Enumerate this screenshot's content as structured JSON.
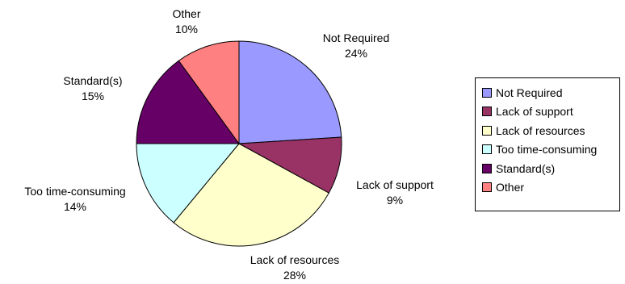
{
  "chart_data": {
    "type": "pie",
    "title": "",
    "start_angle_deg": 0,
    "direction": "clockwise",
    "legend_placement": "right",
    "slices": [
      {
        "label": "Not Required",
        "value": 24,
        "percent_label": "24%",
        "color": "#9999FF"
      },
      {
        "label": "Lack of support",
        "value": 9,
        "percent_label": "9%",
        "color": "#993366"
      },
      {
        "label": "Lack of resources",
        "value": 28,
        "percent_label": "28%",
        "color": "#FFFFCC"
      },
      {
        "label": "Too time-consuming",
        "value": 14,
        "percent_label": "14%",
        "color": "#CCFFFF"
      },
      {
        "label": "Standard(s)",
        "value": 15,
        "percent_label": "15%",
        "color": "#660066"
      },
      {
        "label": "Other",
        "value": 10,
        "percent_label": "10%",
        "color": "#FF8080"
      }
    ]
  }
}
